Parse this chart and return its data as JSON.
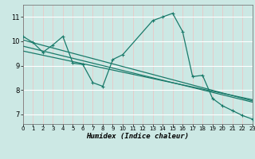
{
  "xlabel": "Humidex (Indice chaleur)",
  "ylabel": "",
  "bg_color": "#cce8e4",
  "grid_color_h": "#ffffff",
  "grid_color_v": "#f0c0c0",
  "line_color": "#1a7a6a",
  "xmin": 0,
  "xmax": 23,
  "ymin": 6.6,
  "ymax": 11.5,
  "yticks": [
    7,
    8,
    9,
    10,
    11
  ],
  "xticks": [
    0,
    1,
    2,
    3,
    4,
    5,
    6,
    7,
    8,
    9,
    10,
    11,
    12,
    13,
    14,
    15,
    16,
    17,
    18,
    19,
    20,
    21,
    22,
    23
  ],
  "series1_x": [
    0,
    1,
    2,
    3,
    4,
    5,
    6,
    7,
    8,
    9,
    10,
    13,
    14,
    15,
    16,
    17,
    18,
    19,
    20,
    21,
    22,
    23
  ],
  "series1_y": [
    10.2,
    9.95,
    9.55,
    9.85,
    10.2,
    9.1,
    9.05,
    8.3,
    8.15,
    9.25,
    9.45,
    10.85,
    11.0,
    11.15,
    10.4,
    8.55,
    8.6,
    7.65,
    7.35,
    7.15,
    6.95,
    6.8
  ],
  "regression_lines": [
    {
      "x": [
        0,
        23
      ],
      "y": [
        10.05,
        7.55
      ]
    },
    {
      "x": [
        0,
        23
      ],
      "y": [
        9.6,
        7.6
      ]
    },
    {
      "x": [
        0,
        23
      ],
      "y": [
        9.8,
        7.5
      ]
    }
  ]
}
